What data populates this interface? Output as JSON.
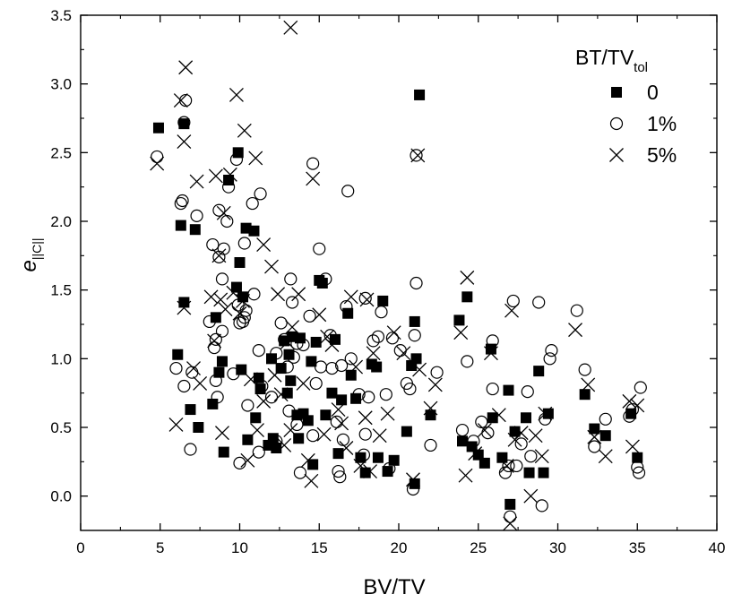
{
  "chart_data": {
    "type": "scatter",
    "title": "",
    "xlabel": "BV/TV",
    "ylabel": {
      "main": "e",
      "sub": "||C||"
    },
    "xlim": [
      0,
      40
    ],
    "ylim": [
      -0.25,
      3.5
    ],
    "x_ticks": [
      0,
      5,
      10,
      15,
      20,
      25,
      30,
      35,
      40
    ],
    "x_tick_labels": [
      "0",
      "5",
      "10",
      "15",
      "20",
      "25",
      "30",
      "35",
      "40"
    ],
    "y_ticks": [
      0.0,
      0.5,
      1.0,
      1.5,
      2.0,
      2.5,
      3.0,
      3.5
    ],
    "y_tick_labels": [
      "0.0",
      "0.5",
      "1.0",
      "1.5",
      "2.0",
      "2.5",
      "3.0",
      "3.5"
    ],
    "grid": false,
    "legend": {
      "title": {
        "main": "BT/TV",
        "sub": "tol"
      },
      "placement": "top-right"
    },
    "series": [
      {
        "name": "0",
        "marker": "filled-square",
        "points": [
          [
            4.9,
            2.68
          ],
          [
            6.1,
            1.03
          ],
          [
            6.3,
            1.97
          ],
          [
            6.5,
            1.41
          ],
          [
            6.5,
            2.71
          ],
          [
            6.9,
            0.63
          ],
          [
            7.2,
            1.94
          ],
          [
            7.4,
            0.5
          ],
          [
            8.3,
            0.67
          ],
          [
            8.5,
            1.3
          ],
          [
            8.7,
            0.9
          ],
          [
            8.9,
            0.98
          ],
          [
            9.0,
            0.32
          ],
          [
            9.3,
            2.3
          ],
          [
            9.8,
            1.52
          ],
          [
            9.9,
            2.5
          ],
          [
            10.0,
            1.7
          ],
          [
            10.1,
            0.92
          ],
          [
            10.2,
            1.45
          ],
          [
            10.4,
            1.95
          ],
          [
            10.5,
            0.41
          ],
          [
            10.9,
            1.93
          ],
          [
            11.0,
            0.57
          ],
          [
            11.2,
            0.86
          ],
          [
            11.3,
            0.78
          ],
          [
            11.8,
            0.37
          ],
          [
            12.0,
            1.0
          ],
          [
            12.1,
            0.42
          ],
          [
            12.3,
            0.35
          ],
          [
            12.6,
            0.93
          ],
          [
            12.8,
            1.13
          ],
          [
            13.0,
            0.75
          ],
          [
            13.1,
            1.03
          ],
          [
            13.2,
            0.84
          ],
          [
            13.3,
            1.16
          ],
          [
            13.6,
            0.59
          ],
          [
            13.7,
            0.42
          ],
          [
            13.8,
            1.15
          ],
          [
            14.0,
            0.6
          ],
          [
            14.3,
            0.55
          ],
          [
            14.5,
            0.98
          ],
          [
            14.6,
            0.23
          ],
          [
            14.8,
            1.12
          ],
          [
            15.0,
            1.57
          ],
          [
            15.2,
            1.55
          ],
          [
            15.4,
            0.59
          ],
          [
            15.8,
            0.75
          ],
          [
            16.0,
            1.14
          ],
          [
            16.2,
            0.31
          ],
          [
            16.4,
            0.7
          ],
          [
            16.8,
            1.33
          ],
          [
            17.0,
            0.88
          ],
          [
            17.3,
            0.71
          ],
          [
            17.6,
            0.28
          ],
          [
            17.9,
            0.17
          ],
          [
            18.3,
            0.96
          ],
          [
            18.6,
            0.94
          ],
          [
            18.7,
            0.28
          ],
          [
            19.0,
            1.42
          ],
          [
            19.3,
            0.18
          ],
          [
            19.7,
            0.26
          ],
          [
            20.5,
            0.47
          ],
          [
            20.8,
            0.95
          ],
          [
            21.0,
            0.09
          ],
          [
            21.0,
            1.27
          ],
          [
            21.1,
            1.0
          ],
          [
            21.3,
            2.92
          ],
          [
            22.0,
            0.59
          ],
          [
            23.8,
            1.28
          ],
          [
            24.0,
            0.4
          ],
          [
            24.3,
            1.45
          ],
          [
            24.6,
            0.36
          ],
          [
            25.0,
            0.3
          ],
          [
            25.4,
            0.24
          ],
          [
            25.8,
            1.07
          ],
          [
            25.9,
            0.57
          ],
          [
            26.5,
            0.28
          ],
          [
            26.9,
            0.77
          ],
          [
            27.0,
            -0.06
          ],
          [
            27.3,
            0.47
          ],
          [
            28.0,
            0.57
          ],
          [
            28.2,
            0.17
          ],
          [
            28.8,
            0.91
          ],
          [
            29.1,
            0.17
          ],
          [
            29.4,
            0.6
          ],
          [
            31.7,
            0.74
          ],
          [
            32.3,
            0.49
          ],
          [
            33.0,
            0.44
          ],
          [
            34.6,
            0.6
          ],
          [
            35.0,
            0.28
          ]
        ]
      },
      {
        "name": "1%",
        "marker": "open-circle",
        "points": [
          [
            4.8,
            2.47
          ],
          [
            6.0,
            0.93
          ],
          [
            6.3,
            2.13
          ],
          [
            6.4,
            2.15
          ],
          [
            6.5,
            2.72
          ],
          [
            6.6,
            2.88
          ],
          [
            6.5,
            0.8
          ],
          [
            6.9,
            0.34
          ],
          [
            7.0,
            0.9
          ],
          [
            7.3,
            2.04
          ],
          [
            8.1,
            1.27
          ],
          [
            8.3,
            1.83
          ],
          [
            8.4,
            1.08
          ],
          [
            8.5,
            1.14
          ],
          [
            8.5,
            0.84
          ],
          [
            8.6,
            0.72
          ],
          [
            8.7,
            1.74
          ],
          [
            8.7,
            2.08
          ],
          [
            8.9,
            1.58
          ],
          [
            8.9,
            1.2
          ],
          [
            9.0,
            1.8
          ],
          [
            9.2,
            2.0
          ],
          [
            9.3,
            2.25
          ],
          [
            9.6,
            0.89
          ],
          [
            9.8,
            2.45
          ],
          [
            9.9,
            1.39
          ],
          [
            10.0,
            0.24
          ],
          [
            10.0,
            1.26
          ],
          [
            10.2,
            1.27
          ],
          [
            10.3,
            1.3
          ],
          [
            10.3,
            1.84
          ],
          [
            10.4,
            1.35
          ],
          [
            10.5,
            0.66
          ],
          [
            10.9,
            1.47
          ],
          [
            10.8,
            2.13
          ],
          [
            11.2,
            0.32
          ],
          [
            11.3,
            2.2
          ],
          [
            11.2,
            1.06
          ],
          [
            11.4,
            0.8
          ],
          [
            12.0,
            0.72
          ],
          [
            12.3,
            1.04
          ],
          [
            12.3,
            0.4
          ],
          [
            12.6,
            1.26
          ],
          [
            12.8,
            1.14
          ],
          [
            13.0,
            0.94
          ],
          [
            13.1,
            0.62
          ],
          [
            13.2,
            1.58
          ],
          [
            13.3,
            1.41
          ],
          [
            13.4,
            1.01
          ],
          [
            13.6,
            1.11
          ],
          [
            13.6,
            0.52
          ],
          [
            13.8,
            0.17
          ],
          [
            14.0,
            1.1
          ],
          [
            14.4,
            1.31
          ],
          [
            14.6,
            2.42
          ],
          [
            14.6,
            0.44
          ],
          [
            14.8,
            0.82
          ],
          [
            15.0,
            1.8
          ],
          [
            15.1,
            0.94
          ],
          [
            15.4,
            1.58
          ],
          [
            15.7,
            1.17
          ],
          [
            15.8,
            0.93
          ],
          [
            16.1,
            0.54
          ],
          [
            16.2,
            0.18
          ],
          [
            16.3,
            0.14
          ],
          [
            16.4,
            0.95
          ],
          [
            16.5,
            0.41
          ],
          [
            16.7,
            1.38
          ],
          [
            16.8,
            2.22
          ],
          [
            17.0,
            1.0
          ],
          [
            17.5,
            0.74
          ],
          [
            17.8,
            0.3
          ],
          [
            17.9,
            0.45
          ],
          [
            17.9,
            1.44
          ],
          [
            18.1,
            0.72
          ],
          [
            18.4,
            1.13
          ],
          [
            18.7,
            1.16
          ],
          [
            18.9,
            1.34
          ],
          [
            19.2,
            0.74
          ],
          [
            19.4,
            0.2
          ],
          [
            19.6,
            1.15
          ],
          [
            20.1,
            1.06
          ],
          [
            20.5,
            0.82
          ],
          [
            20.7,
            0.78
          ],
          [
            20.9,
            0.05
          ],
          [
            21.0,
            1.17
          ],
          [
            21.1,
            1.55
          ],
          [
            21.1,
            2.48
          ],
          [
            22.0,
            0.37
          ],
          [
            22.4,
            0.9
          ],
          [
            24.0,
            0.48
          ],
          [
            24.3,
            0.98
          ],
          [
            24.7,
            0.4
          ],
          [
            25.2,
            0.54
          ],
          [
            25.6,
            0.46
          ],
          [
            25.9,
            1.13
          ],
          [
            25.9,
            0.78
          ],
          [
            26.7,
            0.17
          ],
          [
            26.9,
            0.22
          ],
          [
            27.0,
            -0.15
          ],
          [
            27.2,
            1.42
          ],
          [
            27.4,
            0.22
          ],
          [
            27.7,
            0.38
          ],
          [
            28.1,
            0.76
          ],
          [
            28.3,
            0.29
          ],
          [
            28.8,
            1.41
          ],
          [
            29.0,
            -0.07
          ],
          [
            29.2,
            0.56
          ],
          [
            29.5,
            1.0
          ],
          [
            29.6,
            1.06
          ],
          [
            31.2,
            1.35
          ],
          [
            31.7,
            0.92
          ],
          [
            32.3,
            0.36
          ],
          [
            33.0,
            0.56
          ],
          [
            34.5,
            0.58
          ],
          [
            34.7,
            0.63
          ],
          [
            35.0,
            0.21
          ],
          [
            35.1,
            0.17
          ],
          [
            35.2,
            0.79
          ]
        ]
      },
      {
        "name": "5%",
        "marker": "cross",
        "points": [
          [
            4.8,
            2.42
          ],
          [
            6.0,
            0.52
          ],
          [
            6.3,
            2.88
          ],
          [
            6.5,
            2.58
          ],
          [
            6.6,
            3.12
          ],
          [
            6.5,
            1.37
          ],
          [
            7.1,
            0.93
          ],
          [
            7.3,
            2.29
          ],
          [
            7.5,
            0.82
          ],
          [
            8.2,
            1.45
          ],
          [
            8.4,
            1.13
          ],
          [
            8.5,
            2.33
          ],
          [
            8.7,
            1.75
          ],
          [
            8.8,
            1.43
          ],
          [
            8.9,
            0.46
          ],
          [
            9.0,
            2.06
          ],
          [
            9.1,
            1.36
          ],
          [
            9.4,
            2.34
          ],
          [
            9.6,
            1.48
          ],
          [
            9.8,
            2.92
          ],
          [
            10.0,
            1.33
          ],
          [
            10.2,
            1.42
          ],
          [
            10.3,
            2.66
          ],
          [
            10.5,
            0.26
          ],
          [
            10.7,
            0.85
          ],
          [
            11.0,
            2.46
          ],
          [
            11.1,
            0.48
          ],
          [
            11.5,
            1.83
          ],
          [
            11.5,
            0.69
          ],
          [
            12.0,
            1.67
          ],
          [
            12.2,
            0.88
          ],
          [
            12.4,
            1.47
          ],
          [
            12.6,
            0.74
          ],
          [
            12.8,
            0.37
          ],
          [
            13.0,
            1.12
          ],
          [
            13.2,
            3.41
          ],
          [
            13.2,
            0.48
          ],
          [
            13.3,
            1.23
          ],
          [
            13.7,
            1.47
          ],
          [
            14.0,
            0.82
          ],
          [
            14.3,
            0.26
          ],
          [
            14.5,
            0.11
          ],
          [
            14.6,
            2.31
          ],
          [
            15.0,
            1.32
          ],
          [
            15.3,
            0.45
          ],
          [
            15.5,
            1.16
          ],
          [
            15.8,
            1.1
          ],
          [
            16.2,
            0.63
          ],
          [
            16.4,
            0.53
          ],
          [
            16.7,
            0.35
          ],
          [
            17.0,
            1.45
          ],
          [
            17.3,
            0.94
          ],
          [
            17.6,
            0.22
          ],
          [
            17.9,
            0.57
          ],
          [
            18.0,
            1.43
          ],
          [
            18.2,
            0.18
          ],
          [
            18.4,
            1.04
          ],
          [
            18.8,
            0.44
          ],
          [
            19.3,
            0.6
          ],
          [
            19.7,
            1.19
          ],
          [
            20.3,
            1.04
          ],
          [
            20.9,
            0.12
          ],
          [
            21.2,
            2.48
          ],
          [
            21.3,
            0.92
          ],
          [
            22.0,
            0.64
          ],
          [
            22.3,
            0.81
          ],
          [
            23.9,
            1.19
          ],
          [
            24.2,
            0.15
          ],
          [
            24.3,
            1.59
          ],
          [
            24.8,
            0.31
          ],
          [
            25.4,
            0.48
          ],
          [
            25.8,
            1.04
          ],
          [
            26.3,
            0.59
          ],
          [
            26.8,
            0.22
          ],
          [
            27.1,
            1.35
          ],
          [
            27.3,
            0.41
          ],
          [
            27.7,
            0.46
          ],
          [
            28.3,
            0.0
          ],
          [
            28.6,
            0.44
          ],
          [
            29.0,
            0.29
          ],
          [
            29.2,
            0.6
          ],
          [
            31.1,
            1.21
          ],
          [
            31.9,
            0.81
          ],
          [
            32.3,
            0.43
          ],
          [
            33.0,
            0.29
          ],
          [
            34.5,
            0.69
          ],
          [
            34.7,
            0.36
          ],
          [
            35.0,
            0.66
          ],
          [
            27.0,
            -0.2
          ]
        ]
      }
    ]
  }
}
